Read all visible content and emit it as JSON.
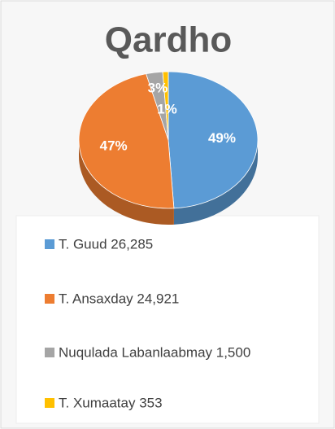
{
  "chart_data": {
    "type": "pie",
    "title": "Qardho",
    "categories": [
      "T. Guud 26,285",
      "T. Ansaxday 24,921",
      "Nuqulada Labanlaabmay 1,500",
      "T. Xumaatay 353"
    ],
    "values": [
      49,
      47,
      3,
      1
    ],
    "value_labels": [
      "49%",
      "47%",
      "3%",
      "1%"
    ],
    "colors": [
      "#5b9bd5",
      "#ed7d31",
      "#a5a5a5",
      "#ffc000"
    ],
    "legend": "bottom"
  }
}
